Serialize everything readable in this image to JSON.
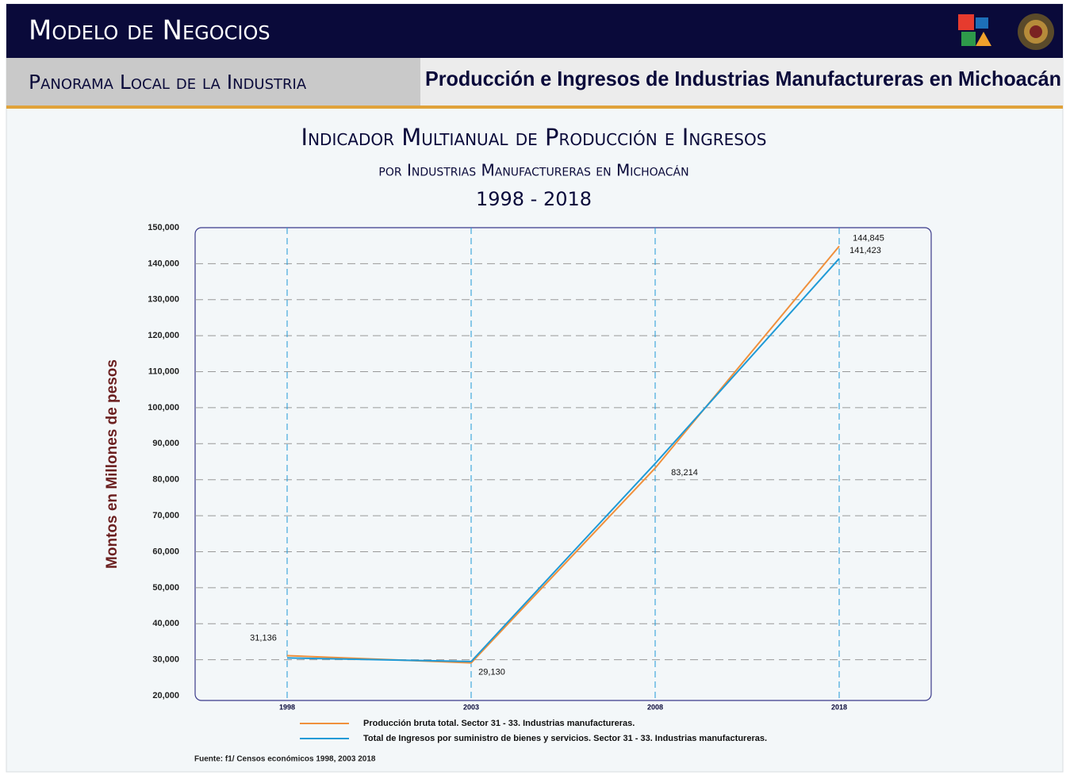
{
  "header": {
    "title": "Modelo de Negocios",
    "section": "Panorama Local de la Industria",
    "topic": "Producción e Ingresos de Industrias Manufactureras en Michoacán"
  },
  "chart_data": {
    "type": "line",
    "title": "Indicador Multianual de Producción e Ingresos",
    "subtitle": "por Industrias Manufactureras en Michoacán",
    "period": "1998 - 2018",
    "y_label": "Montos en Millones de pesos",
    "categories": [
      "1998",
      "2003",
      "2008",
      "2018"
    ],
    "series": [
      {
        "name": "Producción bruta total. Sector 31 - 33. Industrias manufactureras.",
        "color": "#f0903c",
        "values": [
          31136,
          29130,
          83214,
          144845
        ],
        "value_labels": [
          "31,136",
          "29,130",
          "83,214",
          "144,845"
        ]
      },
      {
        "name": "Total de Ingresos por suministro de bienes y servicios. Sector 31 - 33. Industrias manufactureras.",
        "color": "#1f9ad6",
        "values": [
          30500,
          29500,
          84500,
          141423
        ],
        "value_labels": [
          null,
          null,
          null,
          "141,423"
        ]
      }
    ],
    "ylim": [
      20000,
      150000
    ],
    "yticks": [
      {
        "value": 20000,
        "label": "20,000"
      },
      {
        "value": 30000,
        "label": "30,000"
      },
      {
        "value": 40000,
        "label": "40,000"
      },
      {
        "value": 50000,
        "label": "50,000"
      },
      {
        "value": 60000,
        "label": "60,000"
      },
      {
        "value": 70000,
        "label": "70,000"
      },
      {
        "value": 80000,
        "label": "80,000"
      },
      {
        "value": 90000,
        "label": "90,000"
      },
      {
        "value": 100000,
        "label": "100,000"
      },
      {
        "value": 110000,
        "label": "110,000"
      },
      {
        "value": 120000,
        "label": "120,000"
      },
      {
        "value": 130000,
        "label": "130,000"
      },
      {
        "value": 140000,
        "label": "140,000"
      },
      {
        "value": 150000,
        "label": "150,000"
      }
    ],
    "grid": true,
    "source": "Fuente: f1/ Censos económicos 1998, 2003 2018"
  }
}
